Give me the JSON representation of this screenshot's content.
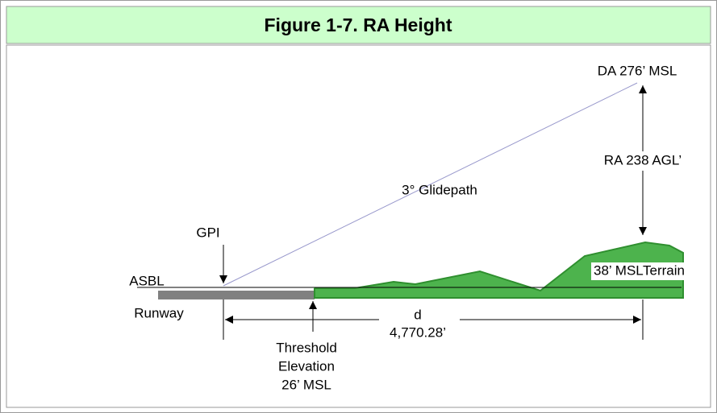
{
  "header": {
    "title": "Figure 1-7.  RA Height"
  },
  "labels": {
    "da": "DA 276’ MSL",
    "ra": "RA 238 AGL’",
    "glidepath": "3° Glidepath",
    "gpi": "GPI",
    "asbl": "ASBL",
    "runway": "Runway",
    "terrain_msl": "38’ MSL",
    "terrain": "Terrain",
    "distance_name": "d",
    "distance": "4,770.28’",
    "threshold": [
      "Threshold",
      "Elevation",
      "26’ MSL"
    ]
  }
}
